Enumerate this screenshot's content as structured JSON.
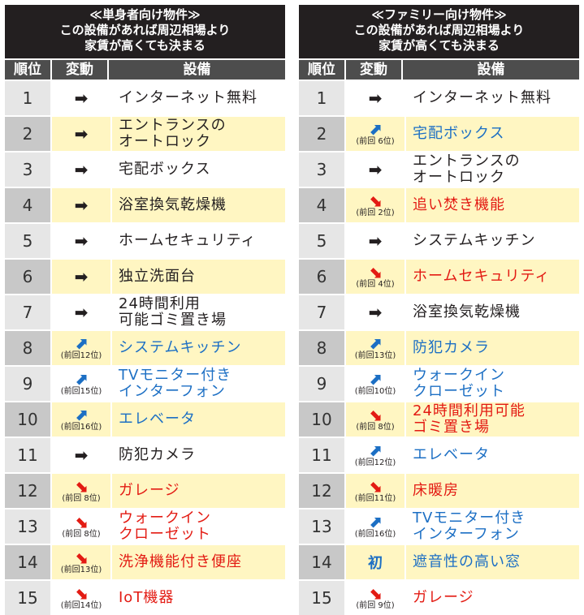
{
  "panels": [
    {
      "title_lines": [
        "≪単身者向け物件≫",
        "この設備があれば周辺相場より",
        "家賃が高くても決まる"
      ],
      "headers": {
        "rank": "順位",
        "change": "変動",
        "item": "設備"
      },
      "rows": [
        {
          "rank": "1",
          "change": "same",
          "prev": "",
          "item": "インターネット無料",
          "color": "black"
        },
        {
          "rank": "2",
          "change": "same",
          "prev": "",
          "item": "エントランスの\nオートロック",
          "color": "black"
        },
        {
          "rank": "3",
          "change": "same",
          "prev": "",
          "item": "宅配ボックス",
          "color": "black"
        },
        {
          "rank": "4",
          "change": "same",
          "prev": "",
          "item": "浴室換気乾燥機",
          "color": "black"
        },
        {
          "rank": "5",
          "change": "same",
          "prev": "",
          "item": "ホームセキュリティ",
          "color": "black"
        },
        {
          "rank": "6",
          "change": "same",
          "prev": "",
          "item": "独立洗面台",
          "color": "black"
        },
        {
          "rank": "7",
          "change": "same",
          "prev": "",
          "item": "24時間利用\n可能ゴミ置き場",
          "color": "black"
        },
        {
          "rank": "8",
          "change": "up",
          "prev": "(前回12位)",
          "item": "システムキッチン",
          "color": "blue"
        },
        {
          "rank": "9",
          "change": "up",
          "prev": "(前回15位)",
          "item": "TVモニター付き\nインターフォン",
          "color": "blue"
        },
        {
          "rank": "10",
          "change": "up",
          "prev": "(前回16位)",
          "item": "エレベータ",
          "color": "blue"
        },
        {
          "rank": "11",
          "change": "same",
          "prev": "",
          "item": "防犯カメラ",
          "color": "black"
        },
        {
          "rank": "12",
          "change": "down",
          "prev": "(前回 8位)",
          "item": "ガレージ",
          "color": "red"
        },
        {
          "rank": "13",
          "change": "down",
          "prev": "(前回 8位)",
          "item": "ウォークイン\nクローゼット",
          "color": "red"
        },
        {
          "rank": "14",
          "change": "down",
          "prev": "(前回13位)",
          "item": "洗浄機能付き便座",
          "color": "red"
        },
        {
          "rank": "15",
          "change": "down",
          "prev": "(前回14位)",
          "item": "IoT機器",
          "color": "red"
        }
      ]
    },
    {
      "title_lines": [
        "≪ファミリー向け物件≫",
        "この設備があれば周辺相場より",
        "家賃が高くても決まる"
      ],
      "headers": {
        "rank": "順位",
        "change": "変動",
        "item": "設備"
      },
      "rows": [
        {
          "rank": "1",
          "change": "same",
          "prev": "",
          "item": "インターネット無料",
          "color": "black"
        },
        {
          "rank": "2",
          "change": "up",
          "prev": "(前回 6位)",
          "item": "宅配ボックス",
          "color": "blue"
        },
        {
          "rank": "3",
          "change": "same",
          "prev": "",
          "item": "エントランスの\nオートロック",
          "color": "black"
        },
        {
          "rank": "4",
          "change": "down",
          "prev": "(前回 2位)",
          "item": "追い焚き機能",
          "color": "red"
        },
        {
          "rank": "5",
          "change": "same",
          "prev": "",
          "item": "システムキッチン",
          "color": "black"
        },
        {
          "rank": "6",
          "change": "down",
          "prev": "(前回 4位)",
          "item": "ホームセキュリティ",
          "color": "red"
        },
        {
          "rank": "7",
          "change": "same",
          "prev": "",
          "item": "浴室換気乾燥機",
          "color": "black"
        },
        {
          "rank": "8",
          "change": "up",
          "prev": "(前回13位)",
          "item": "防犯カメラ",
          "color": "blue"
        },
        {
          "rank": "9",
          "change": "up",
          "prev": "(前回10位)",
          "item": "ウォークイン\nクローゼット",
          "color": "blue"
        },
        {
          "rank": "10",
          "change": "down",
          "prev": "(前回 8位)",
          "item": "24時間利用可能\nゴミ置き場",
          "color": "red"
        },
        {
          "rank": "11",
          "change": "up",
          "prev": "(前回12位)",
          "item": "エレベータ",
          "color": "blue"
        },
        {
          "rank": "12",
          "change": "down",
          "prev": "(前回11位)",
          "item": "床暖房",
          "color": "red"
        },
        {
          "rank": "13",
          "change": "up",
          "prev": "(前回16位)",
          "item": "TVモニター付き\nインターフォン",
          "color": "blue"
        },
        {
          "rank": "14",
          "change": "new",
          "prev": "",
          "new_label": "初",
          "item": "遮音性の高い窓",
          "color": "blue"
        },
        {
          "rank": "15",
          "change": "down",
          "prev": "(前回 9位)",
          "item": "ガレージ",
          "color": "red"
        }
      ]
    }
  ],
  "icons": {
    "same": "right-arrow-icon",
    "up": "up-right-arrow-icon",
    "down": "down-right-arrow-icon"
  },
  "colors": {
    "black": "#231f20",
    "blue": "#1c6fc4",
    "red": "#e31b13",
    "title_bg": "#231f20",
    "header_bg": "#4d4d4d",
    "row_highlight": "#fff6c2"
  }
}
